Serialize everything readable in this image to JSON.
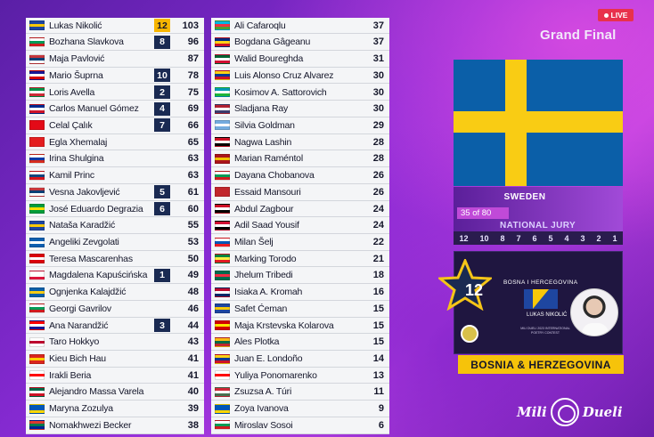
{
  "live_label": "LIVE",
  "show_title": "Grand Final",
  "voting_country": {
    "name": "SWEDEN",
    "progress": "35 of 80",
    "jury_label": "NATIONAL JURY",
    "flag_icon": "sweden-flag-icon"
  },
  "points_scale": [
    "12",
    "10",
    "8",
    "7",
    "6",
    "5",
    "4",
    "3",
    "2",
    "1"
  ],
  "award": {
    "points": "12",
    "country_caption": "BOSNA I HERCEGOVINA",
    "artist_caption": "LUKAS NIKOLIĆ",
    "small_caption": "MILI DUELI 2023 INTERNATIONAL POETRY CONTEST",
    "country_banner": "BOSNIA & HERZEGOVINA"
  },
  "brand": {
    "left": "Mili",
    "right": "Dueli"
  },
  "colors": {
    "badge_navy": "#1a2a52",
    "badge_gold": "#f7b500",
    "live_red": "#e8314c",
    "banner_yellow": "#f6c30a"
  },
  "scoreboard_left": [
    {
      "name": "Lukas Nikolić",
      "points": "12",
      "total": "103",
      "flag": [
        "#1e46a0",
        "#f7c808",
        "#1e46a0"
      ]
    },
    {
      "name": "Bozhana Slavkova",
      "points": "8",
      "total": "96",
      "flag": [
        "#ffffff",
        "#009b55",
        "#d01c1f"
      ]
    },
    {
      "name": "Maja Pavlović",
      "points": "",
      "total": "87",
      "flag": [
        "#c6363c",
        "#0c4076",
        "#ffffff"
      ]
    },
    {
      "name": "Mario Šuprna",
      "points": "10",
      "total": "78",
      "flag": [
        "#171796",
        "#ffffff",
        "#d40000"
      ]
    },
    {
      "name": "Loris Avella",
      "points": "2",
      "total": "75",
      "flag": [
        "#009246",
        "#ffffff",
        "#ce2b37"
      ]
    },
    {
      "name": "Carlos Manuel Gómez",
      "points": "4",
      "total": "69",
      "flag": [
        "#002a8f",
        "#ffffff",
        "#cf142b"
      ]
    },
    {
      "name": "Celal Çalık",
      "points": "7",
      "total": "66",
      "flag": [
        "#e30a17",
        "#e30a17",
        "#e30a17"
      ]
    },
    {
      "name": "Egla Xhemalaj",
      "points": "",
      "total": "65",
      "flag": [
        "#e41e20",
        "#e41e20",
        "#e41e20"
      ]
    },
    {
      "name": "Irina Shulgina",
      "points": "",
      "total": "63",
      "flag": [
        "#ffffff",
        "#0039a6",
        "#d52b1e"
      ]
    },
    {
      "name": "Kamil Princ",
      "points": "",
      "total": "63",
      "flag": [
        "#ffffff",
        "#11457e",
        "#d7141a"
      ]
    },
    {
      "name": "Vesna Jakovljević",
      "points": "5",
      "total": "61",
      "flag": [
        "#c6363c",
        "#0c4076",
        "#ffffff"
      ]
    },
    {
      "name": "José Eduardo Degrazia",
      "points": "6",
      "total": "60",
      "flag": [
        "#009c3b",
        "#ffdf00",
        "#009c3b"
      ]
    },
    {
      "name": "Nataša Karadžić",
      "points": "",
      "total": "55",
      "flag": [
        "#1e46a0",
        "#f7c808",
        "#1e46a0"
      ]
    },
    {
      "name": "Angeliki Zevgolati",
      "points": "",
      "total": "53",
      "flag": [
        "#0d5eaf",
        "#ffffff",
        "#0d5eaf"
      ]
    },
    {
      "name": "Teresa Mascarenhas",
      "points": "",
      "total": "50",
      "flag": [
        "#da000c",
        "#ffffff",
        "#da000c"
      ]
    },
    {
      "name": "Magdalena Kapuścińska",
      "points": "1",
      "total": "49",
      "flag": [
        "#ffffff",
        "#ffffff",
        "#dc143c"
      ]
    },
    {
      "name": "Ognjenka Kalajdžić",
      "points": "",
      "total": "48",
      "flag": [
        "#0b5fa8",
        "#f9cc14",
        "#0b5fa8"
      ]
    },
    {
      "name": "Georgi Gavrilov",
      "points": "",
      "total": "46",
      "flag": [
        "#ffffff",
        "#009b55",
        "#d01c1f"
      ]
    },
    {
      "name": "Ana Narandžić",
      "points": "3",
      "total": "44",
      "flag": [
        "#ff0000",
        "#ffffff",
        "#171796"
      ]
    },
    {
      "name": "Taro Hokkyo",
      "points": "",
      "total": "43",
      "flag": [
        "#ffffff",
        "#bc002d",
        "#ffffff"
      ]
    },
    {
      "name": "Kieu Bich Hau",
      "points": "",
      "total": "41",
      "flag": [
        "#da251d",
        "#ffcd00",
        "#da251d"
      ]
    },
    {
      "name": "Irakli Beria",
      "points": "",
      "total": "41",
      "flag": [
        "#ffffff",
        "#ff0000",
        "#ffffff"
      ]
    },
    {
      "name": "Alejandro Massa Varela",
      "points": "",
      "total": "40",
      "flag": [
        "#006847",
        "#ffffff",
        "#ce1126"
      ]
    },
    {
      "name": "Maryna Zozulya",
      "points": "",
      "total": "39",
      "flag": [
        "#0057b7",
        "#0057b7",
        "#ffd700"
      ]
    },
    {
      "name": "Nomakhwezi Becker",
      "points": "",
      "total": "38",
      "flag": [
        "#de3831",
        "#007a4d",
        "#002395"
      ]
    }
  ],
  "scoreboard_right": [
    {
      "name": "Ali Cafaroqlu",
      "total": "37",
      "flag": [
        "#00b5e2",
        "#ef3340",
        "#509e2f"
      ]
    },
    {
      "name": "Bogdana Gâgeanu",
      "total": "37",
      "flag": [
        "#002b7f",
        "#fcd116",
        "#ce1126"
      ]
    },
    {
      "name": "Walid Boureghda",
      "total": "31",
      "flag": [
        "#006233",
        "#ffffff",
        "#d21034"
      ]
    },
    {
      "name": "Luis Alonso Cruz Alvarez",
      "total": "30",
      "flag": [
        "#fcd116",
        "#003893",
        "#ce1126"
      ]
    },
    {
      "name": "Kosimov A. Sattorovich",
      "total": "30",
      "flag": [
        "#0099b5",
        "#ffffff",
        "#1eb53a"
      ]
    },
    {
      "name": "Sladjana Ray",
      "total": "30",
      "flag": [
        "#b22234",
        "#ffffff",
        "#3c3b6e"
      ]
    },
    {
      "name": "Silvia Goldman",
      "total": "29",
      "flag": [
        "#74acdf",
        "#ffffff",
        "#74acdf"
      ]
    },
    {
      "name": "Nagwa Lashin",
      "total": "28",
      "flag": [
        "#ce1126",
        "#ffffff",
        "#000000"
      ]
    },
    {
      "name": "Marian Raméntol",
      "total": "28",
      "flag": [
        "#aa151b",
        "#f1bf00",
        "#aa151b"
      ]
    },
    {
      "name": "Dayana Chobanova",
      "total": "26",
      "flag": [
        "#ffffff",
        "#009b55",
        "#d01c1f"
      ]
    },
    {
      "name": "Essaid Mansouri",
      "total": "26",
      "flag": [
        "#c1272d",
        "#c1272d",
        "#c1272d"
      ]
    },
    {
      "name": "Abdul Zagbour",
      "total": "24",
      "flag": [
        "#ce1126",
        "#ffffff",
        "#000000"
      ]
    },
    {
      "name": "Adil Saad Yousif",
      "total": "24",
      "flag": [
        "#d21034",
        "#ffffff",
        "#000000"
      ]
    },
    {
      "name": "Milan Šelj",
      "total": "22",
      "flag": [
        "#ffffff",
        "#0057b8",
        "#ed1c24"
      ]
    },
    {
      "name": "Marking Torodo",
      "total": "21",
      "flag": [
        "#00853f",
        "#fdef42",
        "#e31b23"
      ]
    },
    {
      "name": "Jhelum Tribedi",
      "total": "18",
      "flag": [
        "#006a4e",
        "#f42a41",
        "#006a4e"
      ]
    },
    {
      "name": "Isiaka A. Kromah",
      "total": "16",
      "flag": [
        "#bf0a30",
        "#ffffff",
        "#002868"
      ]
    },
    {
      "name": "Safet Ćeman",
      "total": "15",
      "flag": [
        "#1e46a0",
        "#f7c808",
        "#1e46a0"
      ]
    },
    {
      "name": "Maja Krstevska Kolarova",
      "total": "15",
      "flag": [
        "#d20000",
        "#ffe600",
        "#d20000"
      ]
    },
    {
      "name": "Ales Plotka",
      "total": "15",
      "flag": [
        "#fdb913",
        "#006a44",
        "#c1272d"
      ]
    },
    {
      "name": "Juan E. Londoño",
      "total": "14",
      "flag": [
        "#fcd116",
        "#003893",
        "#ce1126"
      ]
    },
    {
      "name": "Yuliya Ponomarenko",
      "total": "13",
      "flag": [
        "#ffffff",
        "#ff0000",
        "#ffffff"
      ]
    },
    {
      "name": "Zsuzsa A. Túri",
      "total": "11",
      "flag": [
        "#ce2939",
        "#ffffff",
        "#477050"
      ]
    },
    {
      "name": "Zoya Ivanova",
      "total": "9",
      "flag": [
        "#0057b7",
        "#0057b7",
        "#ffd700"
      ]
    },
    {
      "name": "Miroslav Sosoi",
      "total": "6",
      "flag": [
        "#ffffff",
        "#009b55",
        "#d01c1f"
      ]
    }
  ]
}
